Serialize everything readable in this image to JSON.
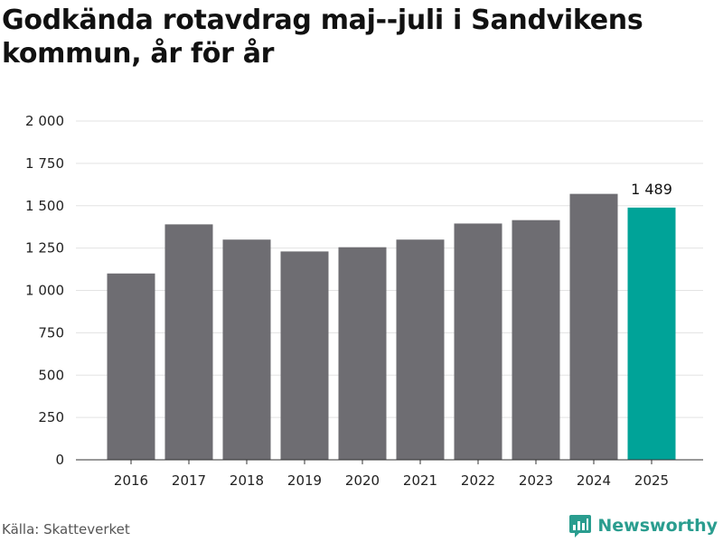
{
  "title": "Godkända rotavdrag maj--juli i Sandvikens kommun, år för år",
  "source": "Källa: Skatteverket",
  "brand": {
    "name": "Newsworthy",
    "icon": "bar-chart-logo-icon",
    "color": "#2a9d8f"
  },
  "colors": {
    "bar": "#6e6d72",
    "highlight": "#00a398",
    "grid": "#e3e3e3",
    "axis": "#333333"
  },
  "chart_data": {
    "type": "bar",
    "title": "Godkända rotavdrag maj--juli i Sandvikens kommun, år för år",
    "xlabel": "",
    "ylabel": "",
    "categories": [
      "2016",
      "2017",
      "2018",
      "2019",
      "2020",
      "2021",
      "2022",
      "2023",
      "2024",
      "2025"
    ],
    "values": [
      1100,
      1390,
      1300,
      1230,
      1255,
      1300,
      1395,
      1415,
      1570,
      1489
    ],
    "ylim": [
      0,
      2000
    ],
    "yticks": [
      0,
      250,
      500,
      750,
      1000,
      1250,
      1500,
      1750,
      2000
    ],
    "ytick_labels": [
      "0",
      "250",
      "500",
      "750",
      "1 000",
      "1 250",
      "1 500",
      "1 750",
      "2 000"
    ],
    "highlight_index": 9,
    "data_labels": [
      {
        "index": 9,
        "text": "1 489"
      }
    ],
    "grid": true,
    "legend": "none"
  }
}
